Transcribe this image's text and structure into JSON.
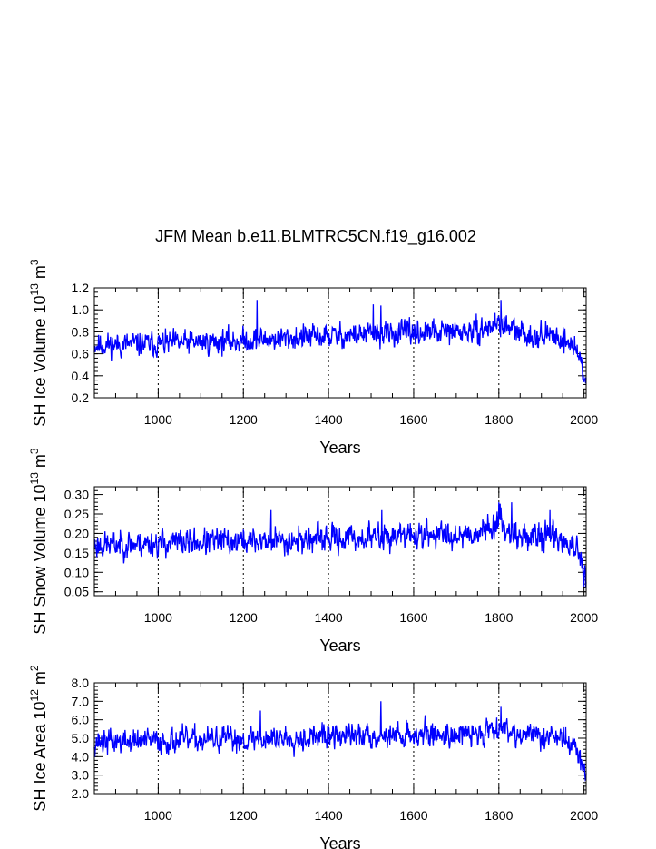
{
  "title": "JFM Mean b.e11.BLMTRC5CN.f19_g16.002",
  "series_color": "#0000ff",
  "chart_data": [
    {
      "type": "line",
      "name": "ice-volume",
      "ylabel": "SH Ice Volume 10",
      "ylabel_exp": "13",
      "ylabel_unit": "m",
      "ylabel_unit_exp": "3",
      "xlabel": "Years",
      "xlim": [
        850,
        2005
      ],
      "ylim": [
        0.2,
        1.2
      ],
      "xticks": [
        1000,
        1200,
        1400,
        1600,
        1800,
        2000
      ],
      "xtick_labels": [
        "1000",
        "1200",
        "1400",
        "1600",
        "1800",
        "2000"
      ],
      "yticks": [
        0.2,
        0.4,
        0.6,
        0.8,
        1.0,
        1.2
      ],
      "ytick_labels": [
        "0.2",
        "0.4",
        "0.6",
        "0.8",
        "1.0",
        "1.2"
      ],
      "vgrid": [
        1000,
        1200,
        1400,
        1600,
        1800
      ],
      "trend": [
        [
          850,
          0.68
        ],
        [
          1000,
          0.69
        ],
        [
          1200,
          0.72
        ],
        [
          1400,
          0.76
        ],
        [
          1600,
          0.79
        ],
        [
          1750,
          0.8
        ],
        [
          1800,
          0.88
        ],
        [
          1850,
          0.78
        ],
        [
          1940,
          0.76
        ],
        [
          1980,
          0.66
        ],
        [
          2005,
          0.38
        ]
      ],
      "amplitude": 0.09,
      "spikes": [
        [
          1232,
          1.09
        ],
        [
          1505,
          1.05
        ],
        [
          1805,
          1.09
        ],
        [
          1523,
          1.04
        ],
        [
          2004,
          0.33
        ]
      ],
      "seed": 11
    },
    {
      "type": "line",
      "name": "snow-volume",
      "ylabel": "SH Snow Volume 10",
      "ylabel_exp": "13",
      "ylabel_unit": "m",
      "ylabel_unit_exp": "3",
      "xlabel": "Years",
      "xlim": [
        850,
        2005
      ],
      "ylim": [
        0.04,
        0.32
      ],
      "xticks": [
        1000,
        1200,
        1400,
        1600,
        1800,
        2000
      ],
      "xtick_labels": [
        "1000",
        "1200",
        "1400",
        "1600",
        "1800",
        "2000"
      ],
      "yticks": [
        0.05,
        0.1,
        0.15,
        0.2,
        0.25,
        0.3
      ],
      "ytick_labels": [
        "0.05",
        "0.10",
        "0.15",
        "0.20",
        "0.25",
        "0.30"
      ],
      "vgrid": [
        1000,
        1200,
        1400,
        1600,
        1800
      ],
      "trend": [
        [
          850,
          0.17
        ],
        [
          1000,
          0.175
        ],
        [
          1200,
          0.18
        ],
        [
          1400,
          0.185
        ],
        [
          1600,
          0.195
        ],
        [
          1750,
          0.2
        ],
        [
          1800,
          0.23
        ],
        [
          1850,
          0.19
        ],
        [
          1930,
          0.195
        ],
        [
          1980,
          0.16
        ],
        [
          2005,
          0.08
        ]
      ],
      "amplitude": 0.028,
      "spikes": [
        [
          1265,
          0.26
        ],
        [
          1525,
          0.26
        ],
        [
          1800,
          0.28
        ],
        [
          1830,
          0.28
        ],
        [
          1920,
          0.26
        ],
        [
          2004,
          0.06
        ]
      ],
      "seed": 23
    },
    {
      "type": "line",
      "name": "ice-area",
      "ylabel": "SH Ice Area 10",
      "ylabel_exp": "12",
      "ylabel_unit": "m",
      "ylabel_unit_exp": "2",
      "xlabel": "Years",
      "xlim": [
        850,
        2005
      ],
      "ylim": [
        2.0,
        8.0
      ],
      "xticks": [
        1000,
        1200,
        1400,
        1600,
        1800,
        2000
      ],
      "xtick_labels": [
        "1000",
        "1200",
        "1400",
        "1600",
        "1800",
        "2000"
      ],
      "yticks": [
        2.0,
        3.0,
        4.0,
        5.0,
        6.0,
        7.0,
        8.0
      ],
      "ytick_labels": [
        "2.0",
        "3.0",
        "4.0",
        "5.0",
        "6.0",
        "7.0",
        "8.0"
      ],
      "vgrid": [
        1000,
        1200,
        1400,
        1600,
        1800
      ],
      "trend": [
        [
          850,
          4.8
        ],
        [
          1000,
          4.85
        ],
        [
          1200,
          4.95
        ],
        [
          1400,
          5.1
        ],
        [
          1600,
          5.2
        ],
        [
          1750,
          5.2
        ],
        [
          1800,
          5.7
        ],
        [
          1850,
          5.2
        ],
        [
          1940,
          5.1
        ],
        [
          1980,
          4.5
        ],
        [
          2005,
          3.0
        ]
      ],
      "amplitude": 0.55,
      "spikes": [
        [
          1523,
          7.0
        ],
        [
          1240,
          6.5
        ],
        [
          1805,
          6.7
        ],
        [
          2004,
          2.8
        ]
      ],
      "seed": 37
    }
  ]
}
